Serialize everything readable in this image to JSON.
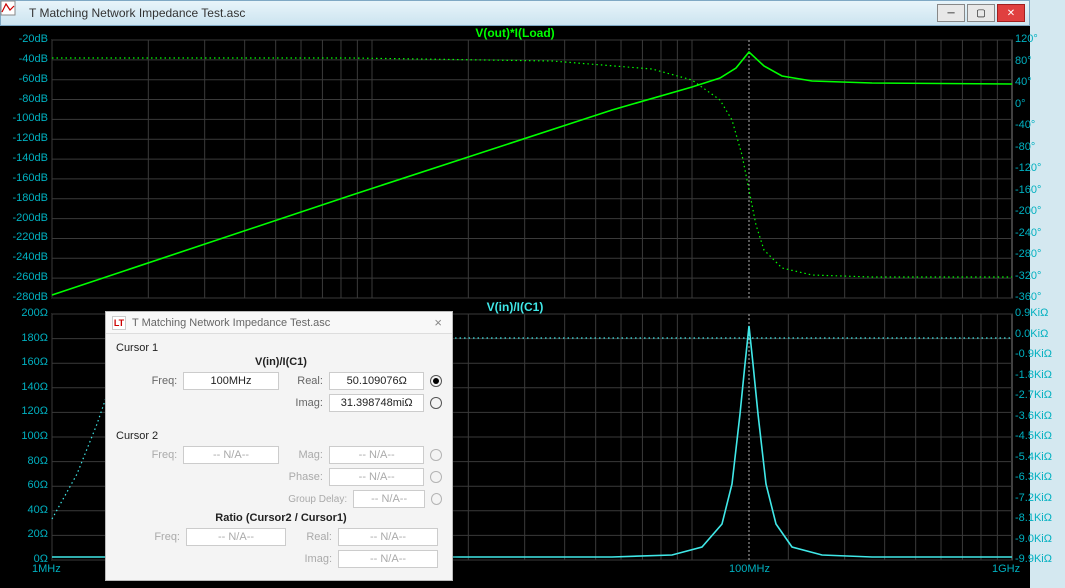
{
  "window": {
    "title": "T Matching Network Impedance Test.asc",
    "minimize": "─",
    "maximize": "▢",
    "close": "✕"
  },
  "colors": {
    "background": "#000000",
    "axis_text": "#00b0c0",
    "grid": "#3a3a3a",
    "cursor": "#b0b0b0",
    "trace1": "#00ff00",
    "trace2": "#40e8e8"
  },
  "top_plot": {
    "title": "V(out)*I(Load)",
    "title_color": "#00ff00",
    "y_left_ticks": [
      "-20dB",
      "-40dB",
      "-60dB",
      "-80dB",
      "-100dB",
      "-120dB",
      "-140dB",
      "-160dB",
      "-180dB",
      "-200dB",
      "-220dB",
      "-240dB",
      "-260dB",
      "-280dB"
    ],
    "y_right_ticks": [
      "120°",
      "80°",
      "40°",
      "0°",
      "-40°",
      "-80°",
      "-120°",
      "-160°",
      "-200°",
      "-240°",
      "-280°",
      "-320°",
      "-360°"
    ],
    "magnitude_points": [
      [
        0,
        255
      ],
      [
        300,
        155
      ],
      [
        560,
        70
      ],
      [
        640,
        47
      ],
      [
        668,
        38
      ],
      [
        684,
        28
      ],
      [
        697,
        12
      ],
      [
        712,
        26
      ],
      [
        730,
        36
      ],
      [
        760,
        41
      ],
      [
        820,
        43
      ],
      [
        960,
        44
      ]
    ],
    "phase_points": [
      [
        0,
        18
      ],
      [
        300,
        18
      ],
      [
        500,
        21
      ],
      [
        600,
        29
      ],
      [
        640,
        40
      ],
      [
        668,
        60
      ],
      [
        680,
        80
      ],
      [
        690,
        115
      ],
      [
        697,
        150
      ],
      [
        704,
        185
      ],
      [
        712,
        210
      ],
      [
        730,
        228
      ],
      [
        760,
        235
      ],
      [
        820,
        237
      ],
      [
        900,
        237
      ],
      [
        960,
        237
      ]
    ],
    "cursor_x": 697
  },
  "bottom_plot": {
    "title": "V(in)/I(C1)",
    "title_color": "#40e8e8",
    "y_left_ticks": [
      "200Ω",
      "180Ω",
      "160Ω",
      "140Ω",
      "120Ω",
      "100Ω",
      "80Ω",
      "60Ω",
      "40Ω",
      "20Ω",
      "0Ω"
    ],
    "y_right_ticks": [
      "0.9KiΩ",
      "0.0KiΩ",
      "-0.9KiΩ",
      "-1.8KiΩ",
      "-2.7KiΩ",
      "-3.6KiΩ",
      "-4.5KiΩ",
      "-5.4KiΩ",
      "-6.3KiΩ",
      "-7.2KiΩ",
      "-8.1KiΩ",
      "-9.0KiΩ",
      "-9.9KiΩ"
    ],
    "x_ticks": [
      {
        "x": 0,
        "label": "1MHz"
      },
      {
        "x": 697,
        "label": "100MHz"
      },
      {
        "x": 960,
        "label": "1GHz"
      }
    ],
    "real_points": [
      [
        0,
        243
      ],
      [
        400,
        243
      ],
      [
        560,
        243
      ],
      [
        620,
        241
      ],
      [
        650,
        233
      ],
      [
        670,
        210
      ],
      [
        680,
        170
      ],
      [
        688,
        100
      ],
      [
        693,
        50
      ],
      [
        697,
        12
      ],
      [
        701,
        50
      ],
      [
        706,
        100
      ],
      [
        714,
        170
      ],
      [
        724,
        210
      ],
      [
        740,
        233
      ],
      [
        770,
        241
      ],
      [
        820,
        243
      ],
      [
        960,
        243
      ]
    ],
    "imag_points": [
      [
        0,
        205
      ],
      [
        25,
        160
      ],
      [
        45,
        110
      ],
      [
        58,
        72
      ],
      [
        80,
        42
      ],
      [
        120,
        27
      ],
      [
        200,
        24
      ],
      [
        400,
        24
      ],
      [
        600,
        24
      ],
      [
        680,
        24
      ],
      [
        697,
        24
      ],
      [
        760,
        24
      ],
      [
        960,
        24
      ]
    ],
    "cursor_x": 697
  },
  "cursor_dialog": {
    "title": "T Matching Network Impedance Test.asc",
    "cursor1_label": "Cursor 1",
    "cursor1_trace": "V(in)/I(C1)",
    "freq_label": "Freq:",
    "cursor1_freq": "100MHz",
    "real_label": "Real:",
    "cursor1_real": "50.109076Ω",
    "imag_label": "Imag:",
    "cursor1_imag": "31.398748miΩ",
    "cursor2_label": "Cursor 2",
    "cursor2_freq": "-- N/A--",
    "mag_label": "Mag:",
    "cursor2_mag": "-- N/A--",
    "phase_label": "Phase:",
    "cursor2_phase": "-- N/A--",
    "gd_label": "Group Delay:",
    "cursor2_gd": "-- N/A--",
    "ratio_label": "Ratio (Cursor2 / Cursor1)",
    "ratio_freq": "-- N/A--",
    "ratio_real": "-- N/A--",
    "ratio_imag": "-- N/A--"
  }
}
